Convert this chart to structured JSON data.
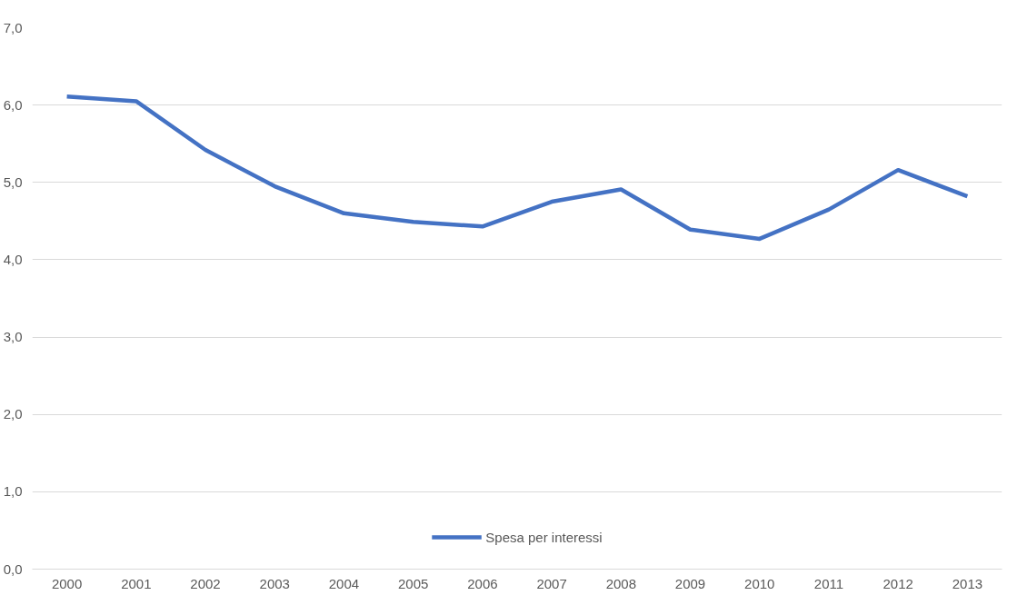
{
  "chart_data": {
    "type": "line",
    "categories": [
      "2000",
      "2001",
      "2002",
      "2003",
      "2004",
      "2005",
      "2006",
      "2007",
      "2008",
      "2009",
      "2010",
      "2011",
      "2012",
      "2013"
    ],
    "series": [
      {
        "name": "Spesa per interessi",
        "color": "#4472c4",
        "values": [
          6.11,
          6.05,
          5.42,
          4.95,
          4.6,
          4.49,
          4.43,
          4.75,
          4.91,
          4.39,
          4.27,
          4.65,
          5.16,
          4.82
        ]
      }
    ],
    "ylim": [
      0,
      7
    ],
    "yticks": [
      {
        "value": 0,
        "label": "0,0"
      },
      {
        "value": 1,
        "label": "1,0"
      },
      {
        "value": 2,
        "label": "2,0"
      },
      {
        "value": 3,
        "label": "3,0"
      },
      {
        "value": 4,
        "label": "4,0"
      },
      {
        "value": 5,
        "label": "5,0"
      },
      {
        "value": 6,
        "label": "6,0"
      },
      {
        "value": 7,
        "label": "7,0"
      }
    ],
    "grid": "y",
    "legend": "bottom",
    "marker": "none",
    "line_style": "solid"
  }
}
